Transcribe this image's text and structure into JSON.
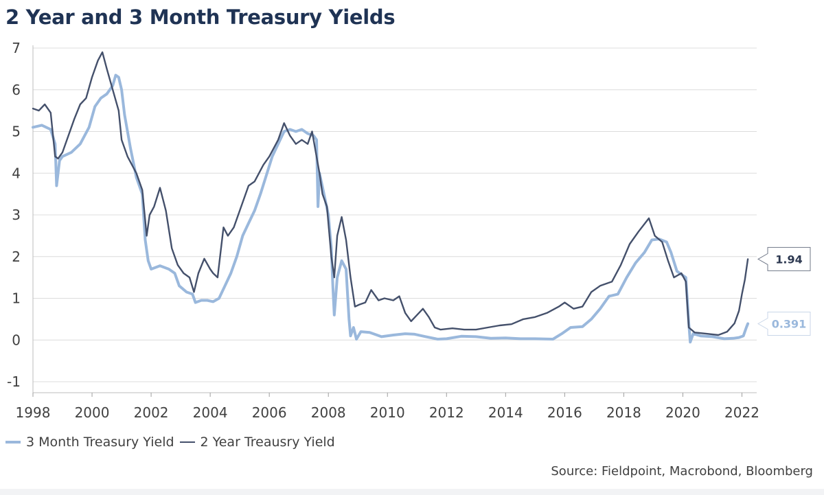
{
  "chart_data": {
    "type": "line",
    "title": "2 Year and 3 Month Treasury Yields",
    "xlabel": "",
    "ylabel": "",
    "xlim": [
      1998,
      2022.5
    ],
    "ylim": [
      -1,
      7
    ],
    "y_ticks": [
      7,
      6,
      5,
      4,
      3,
      2,
      1,
      0,
      -1
    ],
    "x_ticks": [
      1998,
      2000,
      2002,
      2004,
      2006,
      2008,
      2010,
      2012,
      2014,
      2016,
      2018,
      2020,
      2022
    ],
    "grid": true,
    "series": [
      {
        "name": "3 Month Treasury Yield",
        "color": "#9ab8dc",
        "last_value": "0.391",
        "points": [
          [
            1998.0,
            5.1
          ],
          [
            1998.3,
            5.15
          ],
          [
            1998.6,
            5.05
          ],
          [
            1998.75,
            4.7
          ],
          [
            1998.8,
            3.7
          ],
          [
            1998.9,
            4.3
          ],
          [
            1999.0,
            4.4
          ],
          [
            1999.3,
            4.5
          ],
          [
            1999.6,
            4.7
          ],
          [
            1999.9,
            5.1
          ],
          [
            2000.1,
            5.6
          ],
          [
            2000.3,
            5.8
          ],
          [
            2000.5,
            5.9
          ],
          [
            2000.7,
            6.1
          ],
          [
            2000.8,
            6.35
          ],
          [
            2000.9,
            6.3
          ],
          [
            2001.0,
            6.0
          ],
          [
            2001.1,
            5.4
          ],
          [
            2001.3,
            4.6
          ],
          [
            2001.5,
            3.9
          ],
          [
            2001.7,
            3.5
          ],
          [
            2001.8,
            2.4
          ],
          [
            2001.9,
            1.9
          ],
          [
            2002.0,
            1.7
          ],
          [
            2002.3,
            1.78
          ],
          [
            2002.6,
            1.7
          ],
          [
            2002.8,
            1.6
          ],
          [
            2002.95,
            1.3
          ],
          [
            2003.2,
            1.15
          ],
          [
            2003.4,
            1.1
          ],
          [
            2003.5,
            0.9
          ],
          [
            2003.7,
            0.95
          ],
          [
            2003.9,
            0.95
          ],
          [
            2004.1,
            0.92
          ],
          [
            2004.3,
            1.0
          ],
          [
            2004.5,
            1.3
          ],
          [
            2004.7,
            1.6
          ],
          [
            2004.9,
            2.0
          ],
          [
            2005.1,
            2.5
          ],
          [
            2005.3,
            2.8
          ],
          [
            2005.5,
            3.1
          ],
          [
            2005.7,
            3.5
          ],
          [
            2005.9,
            3.95
          ],
          [
            2006.1,
            4.4
          ],
          [
            2006.3,
            4.7
          ],
          [
            2006.5,
            5.0
          ],
          [
            2006.7,
            5.05
          ],
          [
            2006.9,
            5.0
          ],
          [
            2007.1,
            5.05
          ],
          [
            2007.3,
            4.95
          ],
          [
            2007.5,
            4.9
          ],
          [
            2007.6,
            4.8
          ],
          [
            2007.65,
            3.2
          ],
          [
            2007.7,
            4.0
          ],
          [
            2007.85,
            3.5
          ],
          [
            2008.0,
            3.0
          ],
          [
            2008.1,
            2.2
          ],
          [
            2008.15,
            1.3
          ],
          [
            2008.2,
            0.6
          ],
          [
            2008.3,
            1.5
          ],
          [
            2008.45,
            1.9
          ],
          [
            2008.6,
            1.7
          ],
          [
            2008.7,
            0.5
          ],
          [
            2008.75,
            0.1
          ],
          [
            2008.85,
            0.3
          ],
          [
            2008.95,
            0.02
          ],
          [
            2009.1,
            0.2
          ],
          [
            2009.4,
            0.18
          ],
          [
            2009.8,
            0.08
          ],
          [
            2010.2,
            0.12
          ],
          [
            2010.6,
            0.15
          ],
          [
            2010.9,
            0.14
          ],
          [
            2011.3,
            0.08
          ],
          [
            2011.7,
            0.02
          ],
          [
            2012.0,
            0.03
          ],
          [
            2012.5,
            0.09
          ],
          [
            2013.0,
            0.08
          ],
          [
            2013.5,
            0.04
          ],
          [
            2014.0,
            0.05
          ],
          [
            2014.5,
            0.03
          ],
          [
            2015.0,
            0.03
          ],
          [
            2015.6,
            0.02
          ],
          [
            2015.9,
            0.15
          ],
          [
            2016.2,
            0.3
          ],
          [
            2016.6,
            0.32
          ],
          [
            2016.9,
            0.5
          ],
          [
            2017.2,
            0.75
          ],
          [
            2017.5,
            1.05
          ],
          [
            2017.8,
            1.1
          ],
          [
            2018.1,
            1.5
          ],
          [
            2018.4,
            1.85
          ],
          [
            2018.7,
            2.1
          ],
          [
            2018.95,
            2.4
          ],
          [
            2019.2,
            2.42
          ],
          [
            2019.45,
            2.35
          ],
          [
            2019.6,
            2.1
          ],
          [
            2019.8,
            1.65
          ],
          [
            2020.0,
            1.55
          ],
          [
            2020.1,
            1.5
          ],
          [
            2020.2,
            0.4
          ],
          [
            2020.25,
            -0.05
          ],
          [
            2020.35,
            0.15
          ],
          [
            2020.6,
            0.1
          ],
          [
            2021.0,
            0.08
          ],
          [
            2021.4,
            0.03
          ],
          [
            2021.7,
            0.04
          ],
          [
            2021.9,
            0.06
          ],
          [
            2022.05,
            0.1
          ],
          [
            2022.15,
            0.3
          ],
          [
            2022.2,
            0.391
          ]
        ]
      },
      {
        "name": "2 Year Treausry Yield",
        "color": "#44506b",
        "last_value": "1.94",
        "points": [
          [
            1998.0,
            5.55
          ],
          [
            1998.2,
            5.5
          ],
          [
            1998.4,
            5.65
          ],
          [
            1998.6,
            5.45
          ],
          [
            1998.75,
            4.4
          ],
          [
            1998.85,
            4.35
          ],
          [
            1999.0,
            4.5
          ],
          [
            1999.2,
            4.9
          ],
          [
            1999.4,
            5.3
          ],
          [
            1999.6,
            5.65
          ],
          [
            1999.8,
            5.8
          ],
          [
            2000.0,
            6.3
          ],
          [
            2000.2,
            6.7
          ],
          [
            2000.35,
            6.9
          ],
          [
            2000.5,
            6.5
          ],
          [
            2000.7,
            6.0
          ],
          [
            2000.9,
            5.5
          ],
          [
            2001.0,
            4.8
          ],
          [
            2001.2,
            4.4
          ],
          [
            2001.5,
            4.0
          ],
          [
            2001.7,
            3.6
          ],
          [
            2001.85,
            2.5
          ],
          [
            2001.95,
            3.0
          ],
          [
            2002.1,
            3.2
          ],
          [
            2002.3,
            3.65
          ],
          [
            2002.5,
            3.1
          ],
          [
            2002.7,
            2.2
          ],
          [
            2002.9,
            1.8
          ],
          [
            2003.1,
            1.6
          ],
          [
            2003.3,
            1.5
          ],
          [
            2003.45,
            1.15
          ],
          [
            2003.6,
            1.6
          ],
          [
            2003.8,
            1.95
          ],
          [
            2004.0,
            1.7
          ],
          [
            2004.1,
            1.6
          ],
          [
            2004.25,
            1.5
          ],
          [
            2004.45,
            2.7
          ],
          [
            2004.6,
            2.5
          ],
          [
            2004.8,
            2.7
          ],
          [
            2005.0,
            3.1
          ],
          [
            2005.3,
            3.7
          ],
          [
            2005.5,
            3.8
          ],
          [
            2005.8,
            4.2
          ],
          [
            2006.0,
            4.4
          ],
          [
            2006.3,
            4.8
          ],
          [
            2006.5,
            5.2
          ],
          [
            2006.7,
            4.9
          ],
          [
            2006.9,
            4.7
          ],
          [
            2007.1,
            4.8
          ],
          [
            2007.3,
            4.7
          ],
          [
            2007.45,
            5.0
          ],
          [
            2007.55,
            4.6
          ],
          [
            2007.7,
            4.0
          ],
          [
            2007.8,
            3.5
          ],
          [
            2007.95,
            3.2
          ],
          [
            2008.1,
            2.0
          ],
          [
            2008.2,
            1.5
          ],
          [
            2008.3,
            2.5
          ],
          [
            2008.45,
            2.95
          ],
          [
            2008.6,
            2.4
          ],
          [
            2008.75,
            1.5
          ],
          [
            2008.9,
            0.8
          ],
          [
            2009.05,
            0.85
          ],
          [
            2009.25,
            0.9
          ],
          [
            2009.45,
            1.2
          ],
          [
            2009.7,
            0.95
          ],
          [
            2009.9,
            1.0
          ],
          [
            2010.2,
            0.95
          ],
          [
            2010.4,
            1.05
          ],
          [
            2010.6,
            0.65
          ],
          [
            2010.8,
            0.45
          ],
          [
            2011.0,
            0.6
          ],
          [
            2011.2,
            0.75
          ],
          [
            2011.4,
            0.55
          ],
          [
            2011.6,
            0.3
          ],
          [
            2011.8,
            0.25
          ],
          [
            2012.2,
            0.28
          ],
          [
            2012.6,
            0.25
          ],
          [
            2013.0,
            0.25
          ],
          [
            2013.4,
            0.3
          ],
          [
            2013.8,
            0.35
          ],
          [
            2014.2,
            0.38
          ],
          [
            2014.6,
            0.5
          ],
          [
            2015.0,
            0.55
          ],
          [
            2015.4,
            0.65
          ],
          [
            2015.8,
            0.8
          ],
          [
            2016.0,
            0.9
          ],
          [
            2016.3,
            0.75
          ],
          [
            2016.6,
            0.8
          ],
          [
            2016.9,
            1.15
          ],
          [
            2017.2,
            1.3
          ],
          [
            2017.6,
            1.4
          ],
          [
            2017.9,
            1.8
          ],
          [
            2018.2,
            2.3
          ],
          [
            2018.5,
            2.6
          ],
          [
            2018.85,
            2.92
          ],
          [
            2019.05,
            2.5
          ],
          [
            2019.3,
            2.35
          ],
          [
            2019.5,
            1.9
          ],
          [
            2019.7,
            1.5
          ],
          [
            2019.95,
            1.6
          ],
          [
            2020.1,
            1.4
          ],
          [
            2020.2,
            0.3
          ],
          [
            2020.4,
            0.18
          ],
          [
            2020.8,
            0.15
          ],
          [
            2021.2,
            0.12
          ],
          [
            2021.5,
            0.2
          ],
          [
            2021.75,
            0.4
          ],
          [
            2021.9,
            0.7
          ],
          [
            2022.0,
            1.1
          ],
          [
            2022.1,
            1.45
          ],
          [
            2022.2,
            1.94
          ]
        ]
      }
    ],
    "source": "Source: Fieldpoint, Macrobond, Bloomberg"
  }
}
